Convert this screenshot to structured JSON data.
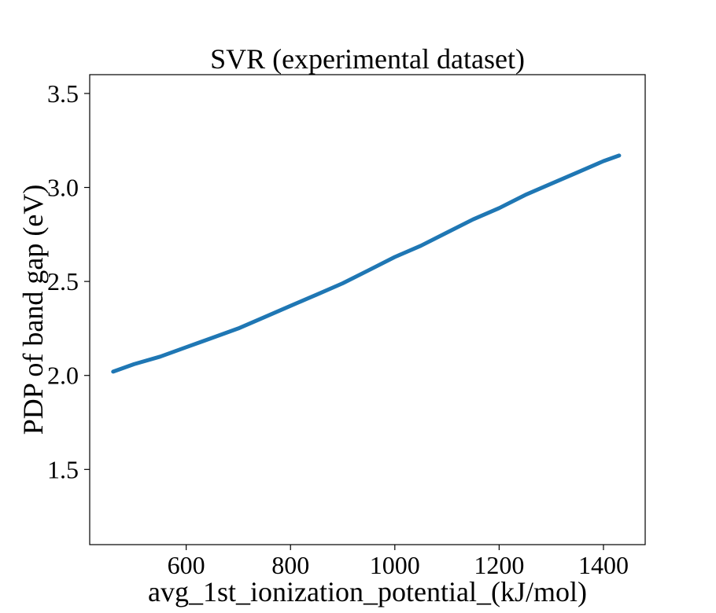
{
  "chart_data": {
    "type": "line",
    "title": "SVR (experimental dataset)",
    "xlabel": "avg_1st_ionization_potential_(kJ/mol)",
    "ylabel": "PDP of band gap (eV)",
    "xlim": [
      415,
      1480
    ],
    "ylim": [
      1.1,
      3.6
    ],
    "xticks": [
      600,
      800,
      1000,
      1200,
      1400
    ],
    "xtick_labels": [
      "600",
      "800",
      "1000",
      "1200",
      "1400"
    ],
    "yticks": [
      1.5,
      2.0,
      2.5,
      3.0,
      3.5
    ],
    "ytick_labels": [
      "1.5",
      "2.0",
      "2.5",
      "3.0",
      "3.5"
    ],
    "grid": false,
    "series": [
      {
        "color": "#1f77b4",
        "x": [
          460,
          500,
          550,
          600,
          650,
          700,
          750,
          800,
          850,
          900,
          950,
          1000,
          1050,
          1100,
          1150,
          1200,
          1250,
          1300,
          1350,
          1400,
          1430
        ],
        "y": [
          2.02,
          2.06,
          2.1,
          2.15,
          2.2,
          2.25,
          2.31,
          2.37,
          2.43,
          2.49,
          2.56,
          2.63,
          2.69,
          2.76,
          2.83,
          2.89,
          2.96,
          3.02,
          3.08,
          3.14,
          3.17
        ]
      }
    ]
  }
}
